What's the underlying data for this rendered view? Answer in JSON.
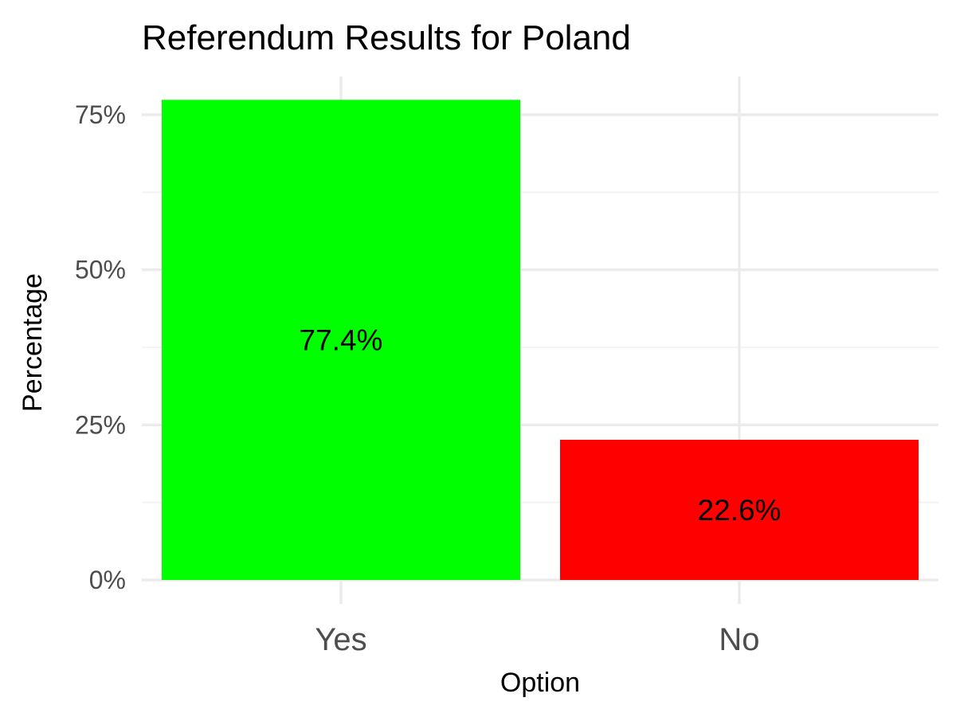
{
  "chart_data": {
    "type": "bar",
    "title": "Referendum Results for Poland",
    "xlabel": "Option",
    "ylabel": "Percentage",
    "categories": [
      "Yes",
      "No"
    ],
    "values": [
      77.4,
      22.6
    ],
    "value_labels": [
      "77.4%",
      "22.6%"
    ],
    "colors": [
      "#00ff00",
      "#ff0000"
    ],
    "ylim": [
      0,
      80
    ],
    "yticks": [
      0,
      25,
      50,
      75
    ],
    "ytick_labels": [
      "0%",
      "25%",
      "50%",
      "75%"
    ],
    "grid": true,
    "legend": false
  }
}
